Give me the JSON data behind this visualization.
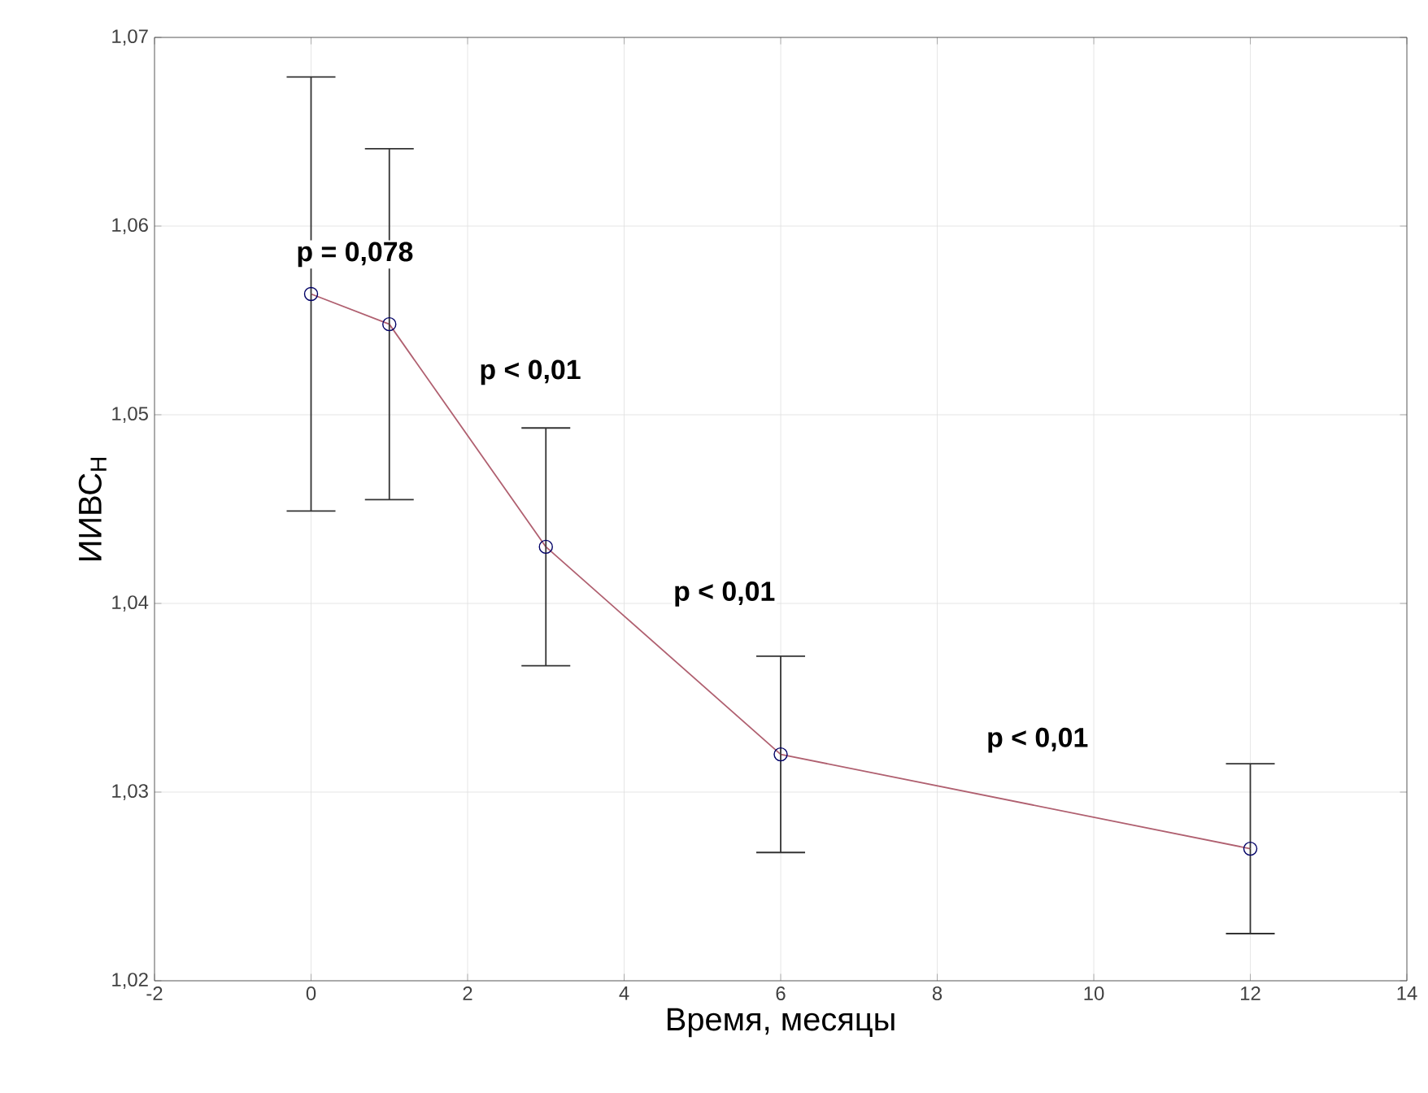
{
  "chart_data": {
    "type": "line",
    "xlabel": "Время, месяцы",
    "ylabel": "ИИВС$_{Н}$",
    "x": [
      0,
      1,
      3,
      6,
      12
    ],
    "series": [
      {
        "color": "#b06070",
        "values": [
          1.0564,
          1.0548,
          1.043,
          1.032,
          1.027
        ],
        "errors": [
          0.0115,
          0.0093,
          0.0063,
          0.0052,
          0.0045
        ]
      }
    ],
    "xlim": [
      -2,
      14
    ],
    "xticks": [
      -2,
      0,
      2,
      4,
      6,
      8,
      10,
      12,
      14
    ],
    "ylim": [
      1.02,
      1.07
    ],
    "yticks": [
      {
        "value": 1.02,
        "label": "1,02"
      },
      {
        "value": 1.03,
        "label": "1,03"
      },
      {
        "value": 1.04,
        "label": "1,04"
      },
      {
        "value": 1.05,
        "label": "1,05"
      },
      {
        "value": 1.06,
        "label": "1,06"
      },
      {
        "value": 1.07,
        "label": "1,07"
      }
    ],
    "grid": true,
    "marker": "circle",
    "line_style": "solid",
    "annotations": [
      "**p = 0,078**",
      "**p < 0,01**",
      "**p < 0,01**",
      "**p < 0,01**"
    ]
  }
}
